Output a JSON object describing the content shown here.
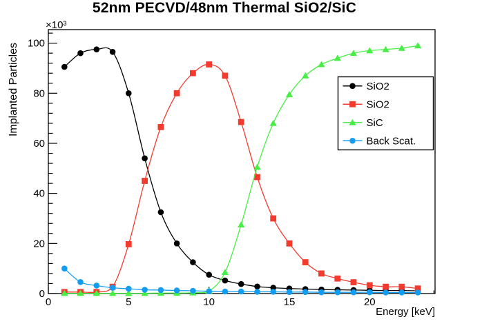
{
  "chart_data": {
    "type": "line",
    "title": "52nm PECVD/48nm Thermal SiO2/SiC",
    "xlabel": "Energy [keV]",
    "ylabel": "Implanted Particles",
    "y_axis_multiplier": "×10³",
    "x_range": [
      0,
      24.07
    ],
    "y_range": [
      0,
      105.4
    ],
    "x_major_ticks": [
      0,
      5,
      10,
      15,
      20
    ],
    "x_minor_tick_step": 1,
    "y_major_ticks": [
      0,
      20,
      40,
      60,
      80,
      100
    ],
    "y_minor_tick_step": 4,
    "grid": false,
    "legend_position": "center-right",
    "x": [
      1,
      2,
      3,
      4,
      5,
      6,
      7,
      8,
      9,
      10,
      11,
      12,
      13,
      14,
      15,
      16,
      17,
      18,
      19,
      20,
      21,
      22,
      23
    ],
    "series": [
      {
        "name": "SiO2",
        "color": "#000000",
        "marker": "circle",
        "values": [
          90.5,
          96,
          97.5,
          96.5,
          80,
          54,
          32.5,
          20,
          12.5,
          7.5,
          5.2,
          3.8,
          2.8,
          2.3,
          2,
          1.8,
          1.6,
          1.5,
          1.4,
          1.3,
          1.2,
          1.2,
          1.1
        ]
      },
      {
        "name": "SiO2",
        "color": "#f23b2e",
        "marker": "square",
        "values": [
          0.6,
          0.6,
          0.6,
          2.7,
          19.7,
          45,
          66.5,
          80,
          88,
          91.5,
          87,
          68.5,
          46.5,
          30,
          20,
          12.5,
          8,
          6,
          4.5,
          3.3,
          2.7,
          2.7,
          2
        ]
      },
      {
        "name": "SiC",
        "color": "#47ef44",
        "marker": "triangle-up",
        "values": [
          0.1,
          0.1,
          0.1,
          0.1,
          0.1,
          0.1,
          0.2,
          0.2,
          0.3,
          1,
          8.5,
          27.5,
          50.5,
          68,
          79.5,
          87,
          91.5,
          94,
          96,
          97,
          97.5,
          98,
          99
        ]
      },
      {
        "name": "Back Scat.",
        "color": "#129df2",
        "marker": "circle",
        "values": [
          10,
          4.6,
          3.2,
          2.3,
          1.9,
          1.5,
          1.4,
          1.2,
          1.1,
          0.9,
          0.8,
          0.8,
          0.7,
          0.7,
          0.6,
          0.6,
          0.5,
          0.5,
          0.5,
          0.5,
          0.4,
          0.4,
          0.4
        ]
      }
    ]
  }
}
